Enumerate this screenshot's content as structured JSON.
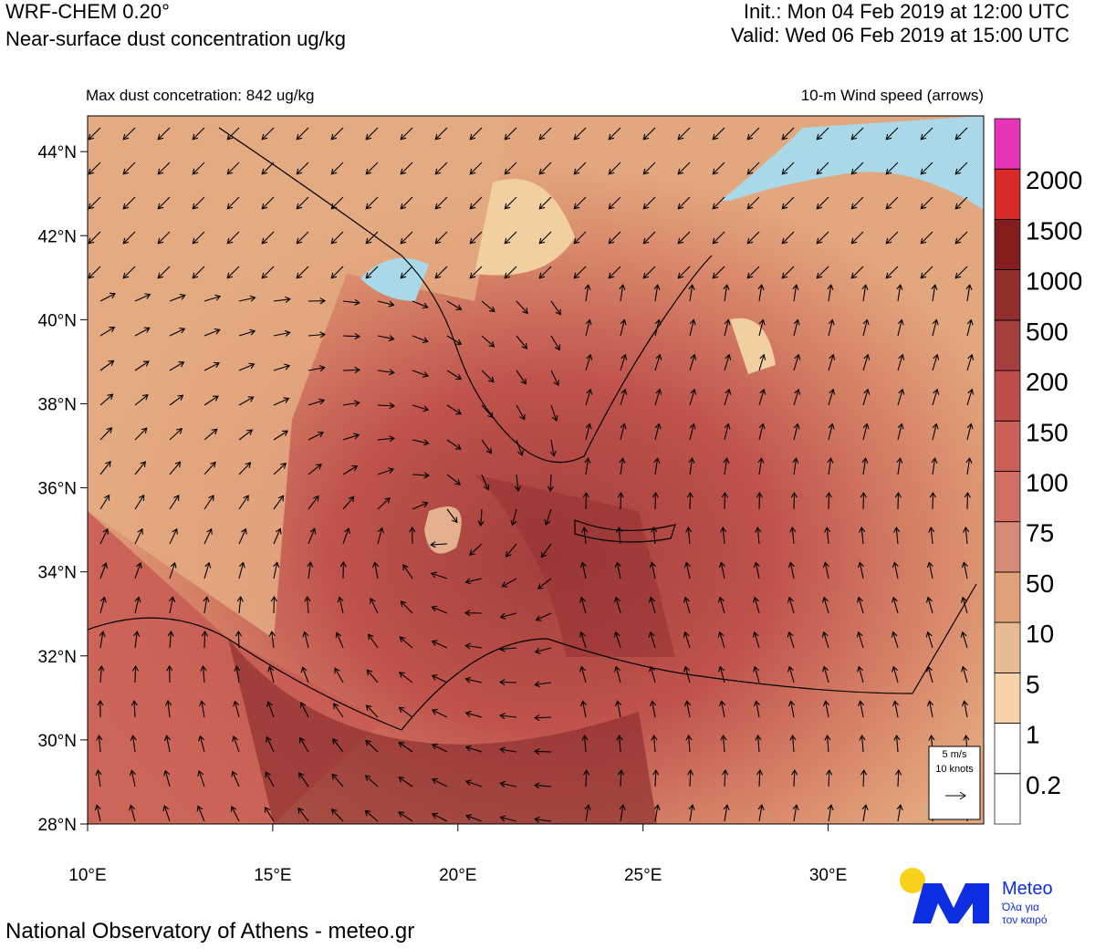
{
  "header": {
    "title": "WRF-CHEM 0.20°",
    "subtitle": "Near-surface dust concentration ug/kg",
    "init": "Init.:  Mon 04 Feb 2019 at 12:00 UTC",
    "valid": "Valid: Wed 06 Feb 2019 at 15:00 UTC"
  },
  "map": {
    "left_note": "Max dust concetration: 842 ug/kg",
    "right_note": "10-m Wind speed (arrows)",
    "lon_lim": [
      10,
      34.2
    ],
    "lat_lim": [
      28,
      44.85
    ],
    "lonticks": [
      {
        "value": 10,
        "label": "10°E"
      },
      {
        "value": 15,
        "label": "15°E"
      },
      {
        "value": 20,
        "label": "20°E"
      },
      {
        "value": 25,
        "label": "25°E"
      },
      {
        "value": 30,
        "label": "30°E"
      }
    ],
    "latticks": [
      {
        "value": 28,
        "label": "28°N"
      },
      {
        "value": 30,
        "label": "30°N"
      },
      {
        "value": 32,
        "label": "32°N"
      },
      {
        "value": 34,
        "label": "34°N"
      },
      {
        "value": 36,
        "label": "36°N"
      },
      {
        "value": 38,
        "label": "38°N"
      },
      {
        "value": 40,
        "label": "40°N"
      },
      {
        "value": 42,
        "label": "42°N"
      },
      {
        "value": 44,
        "label": "44°N"
      }
    ],
    "wind_key": {
      "speed": "5 m/s",
      "knots": "10 knots"
    }
  },
  "colorbar": {
    "levels": [
      0.2,
      1,
      5,
      10,
      50,
      75,
      100,
      150,
      200,
      500,
      1000,
      1500,
      2000
    ],
    "colors": [
      "#ffffff",
      "#ffffff",
      "#f6d2a6",
      "#e9bb92",
      "#dfa07a",
      "#d68a78",
      "#d36f62",
      "#cc5d57",
      "#c04c49",
      "#a63f3f",
      "#912f2f",
      "#861d1d",
      "#d8292b",
      "#e635b8"
    ]
  },
  "footer": {
    "text": "National Observatory of Athens - meteo.gr",
    "logo": "Meteo",
    "slogan1": "Όλα για",
    "slogan2": "τον καιρό"
  }
}
